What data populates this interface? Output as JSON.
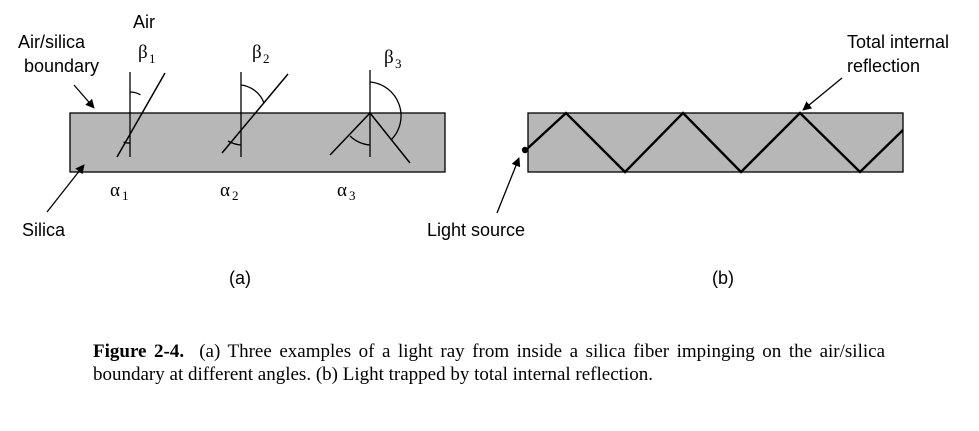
{
  "panel_a": {
    "air_label": "Air",
    "boundary_label_line1": "Air/silica",
    "boundary_label_line2": "boundary",
    "silica_label": "Silica",
    "beta_symbol": "β",
    "alpha_symbol": "α",
    "subscripts": [
      "1",
      "2",
      "3"
    ],
    "panel_label": "(a)"
  },
  "panel_b": {
    "tir_label_line1": "Total internal",
    "tir_label_line2": "reflection",
    "source_label": "Light source",
    "panel_label": "(b)"
  },
  "caption": {
    "figure_label": "Figure 2-4.",
    "text": "(a) Three examples of a light ray from inside a silica fiber impinging on the air/silica boundary at different angles. (b) Light trapped by total internal reflection."
  },
  "colors": {
    "fiber_fill": "#b7b7b7",
    "ink": "#000000"
  }
}
